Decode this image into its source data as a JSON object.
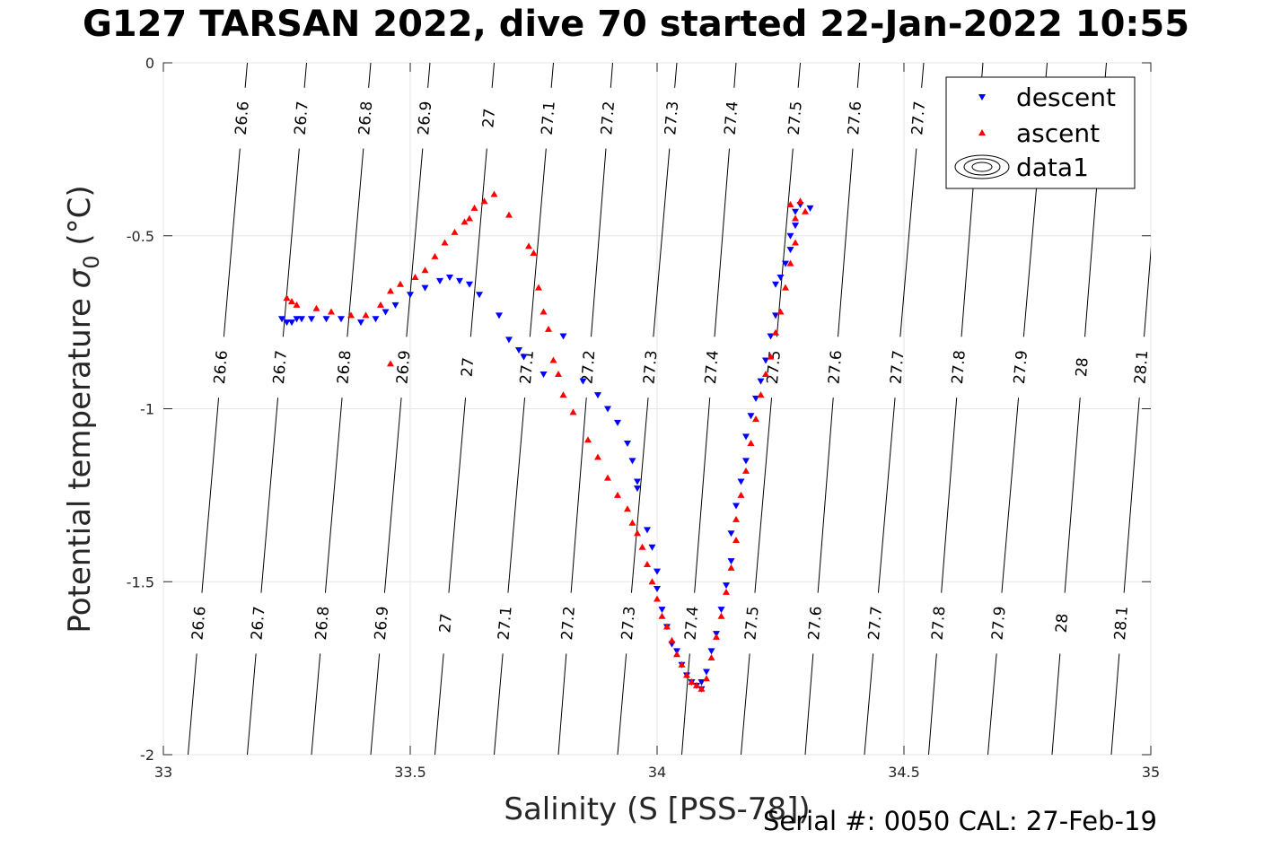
{
  "title": "G127 TARSAN 2022, dive 70 started 22-Jan-2022 10:55",
  "serial_text": "Serial #: 0050  CAL: 27-Feb-19",
  "chart_data": {
    "type": "scatter",
    "title": "G127 TARSAN 2022, dive 70 started 22-Jan-2022 10:55",
    "xlabel": "Salinity (S [PSS-78])",
    "ylabel": "Potential temperature σ₀ (°C)",
    "ylabel_parts": {
      "main": "Potential temperature ",
      "sym": "σ",
      "sub": "0",
      "unit": " (°C)"
    },
    "xlim": [
      33,
      35
    ],
    "ylim": [
      -2,
      0
    ],
    "x_ticks": [
      "33",
      "33.5",
      "34",
      "34.5",
      "35"
    ],
    "y_ticks": [
      "0",
      "-0.5",
      "-1",
      "-1.5",
      "-2"
    ],
    "grid": true,
    "legend_position": "top-right",
    "legend": [
      {
        "label": "descent",
        "marker": "triangle-down",
        "color": "#0000ff"
      },
      {
        "label": "ascent",
        "marker": "triangle-up",
        "color": "#ff0000"
      },
      {
        "label": "data1",
        "marker": "contour",
        "color": "#000000"
      }
    ],
    "contour_labels": [
      "26.6",
      "26.7",
      "26.8",
      "26.9",
      "27",
      "27.1",
      "27.2",
      "27.3",
      "27.4",
      "27.5",
      "27.6",
      "27.7",
      "27.8",
      "27.9",
      "28",
      "28.1"
    ],
    "contours": [
      {
        "level": 26.6,
        "s_bottom": 33.05,
        "s_top": 33.17
      },
      {
        "level": 26.7,
        "s_bottom": 33.17,
        "s_top": 33.29
      },
      {
        "level": 26.8,
        "s_bottom": 33.3,
        "s_top": 33.42
      },
      {
        "level": 26.9,
        "s_bottom": 33.42,
        "s_top": 33.54
      },
      {
        "level": 27.0,
        "s_bottom": 33.55,
        "s_top": 33.67
      },
      {
        "level": 27.1,
        "s_bottom": 33.67,
        "s_top": 33.79
      },
      {
        "level": 27.2,
        "s_bottom": 33.8,
        "s_top": 33.91
      },
      {
        "level": 27.3,
        "s_bottom": 33.92,
        "s_top": 34.04
      },
      {
        "level": 27.4,
        "s_bottom": 34.05,
        "s_top": 34.16
      },
      {
        "level": 27.5,
        "s_bottom": 34.17,
        "s_top": 34.29
      },
      {
        "level": 27.6,
        "s_bottom": 34.3,
        "s_top": 34.41
      },
      {
        "level": 27.7,
        "s_bottom": 34.42,
        "s_top": 34.54
      },
      {
        "level": 27.8,
        "s_bottom": 34.55,
        "s_top": 34.66
      },
      {
        "level": 27.9,
        "s_bottom": 34.67,
        "s_top": 34.79
      },
      {
        "level": 28.0,
        "s_bottom": 34.8,
        "s_top": 34.91
      },
      {
        "level": 28.1,
        "s_bottom": 34.92,
        "s_top": 35.03
      }
    ],
    "series": [
      {
        "name": "descent",
        "color": "#0000ff",
        "marker": "triangle-down",
        "points": [
          [
            33.24,
            -0.74
          ],
          [
            33.25,
            -0.75
          ],
          [
            33.26,
            -0.75
          ],
          [
            33.27,
            -0.74
          ],
          [
            33.28,
            -0.74
          ],
          [
            33.3,
            -0.74
          ],
          [
            33.33,
            -0.74
          ],
          [
            33.36,
            -0.74
          ],
          [
            33.4,
            -0.75
          ],
          [
            33.43,
            -0.74
          ],
          [
            33.45,
            -0.72
          ],
          [
            33.47,
            -0.7
          ],
          [
            33.5,
            -0.67
          ],
          [
            33.53,
            -0.65
          ],
          [
            33.56,
            -0.63
          ],
          [
            33.58,
            -0.62
          ],
          [
            33.6,
            -0.63
          ],
          [
            33.62,
            -0.64
          ],
          [
            33.64,
            -0.67
          ],
          [
            33.68,
            -0.73
          ],
          [
            33.7,
            -0.8
          ],
          [
            33.72,
            -0.83
          ],
          [
            33.73,
            -0.85
          ],
          [
            33.77,
            -0.9
          ],
          [
            33.81,
            -0.79
          ],
          [
            33.85,
            -0.92
          ],
          [
            33.88,
            -0.96
          ],
          [
            33.9,
            -1.0
          ],
          [
            33.92,
            -1.04
          ],
          [
            33.94,
            -1.1
          ],
          [
            33.95,
            -1.15
          ],
          [
            33.96,
            -1.21
          ],
          [
            33.96,
            -1.23
          ],
          [
            33.98,
            -1.35
          ],
          [
            33.99,
            -1.4
          ],
          [
            34.0,
            -1.47
          ],
          [
            34.0,
            -1.52
          ],
          [
            34.01,
            -1.58
          ],
          [
            34.02,
            -1.63
          ],
          [
            34.03,
            -1.68
          ],
          [
            34.04,
            -1.7
          ],
          [
            34.05,
            -1.74
          ],
          [
            34.06,
            -1.77
          ],
          [
            34.07,
            -1.79
          ],
          [
            34.08,
            -1.8
          ],
          [
            34.09,
            -1.81
          ],
          [
            34.09,
            -1.79
          ],
          [
            34.1,
            -1.76
          ],
          [
            34.11,
            -1.7
          ],
          [
            34.12,
            -1.65
          ],
          [
            34.13,
            -1.58
          ],
          [
            34.14,
            -1.51
          ],
          [
            34.15,
            -1.44
          ],
          [
            34.15,
            -1.36
          ],
          [
            34.16,
            -1.28
          ],
          [
            34.17,
            -1.21
          ],
          [
            34.18,
            -1.15
          ],
          [
            34.18,
            -1.08
          ],
          [
            34.19,
            -1.02
          ],
          [
            34.2,
            -0.97
          ],
          [
            34.21,
            -0.92
          ],
          [
            34.22,
            -0.86
          ],
          [
            34.23,
            -0.79
          ],
          [
            34.24,
            -0.73
          ],
          [
            34.24,
            -0.64
          ],
          [
            34.25,
            -0.62
          ],
          [
            34.26,
            -0.58
          ],
          [
            34.27,
            -0.54
          ],
          [
            34.27,
            -0.5
          ],
          [
            34.28,
            -0.47
          ],
          [
            34.28,
            -0.43
          ],
          [
            34.29,
            -0.41
          ],
          [
            34.31,
            -0.42
          ]
        ]
      },
      {
        "name": "ascent",
        "color": "#ff0000",
        "marker": "triangle-up",
        "points": [
          [
            33.25,
            -0.68
          ],
          [
            33.26,
            -0.69
          ],
          [
            33.27,
            -0.7
          ],
          [
            33.31,
            -0.71
          ],
          [
            33.34,
            -0.72
          ],
          [
            33.38,
            -0.73
          ],
          [
            33.41,
            -0.73
          ],
          [
            33.44,
            -0.7
          ],
          [
            33.46,
            -0.66
          ],
          [
            33.48,
            -0.64
          ],
          [
            33.51,
            -0.62
          ],
          [
            33.53,
            -0.6
          ],
          [
            33.55,
            -0.56
          ],
          [
            33.57,
            -0.52
          ],
          [
            33.59,
            -0.49
          ],
          [
            33.61,
            -0.46
          ],
          [
            33.62,
            -0.45
          ],
          [
            33.63,
            -0.42
          ],
          [
            33.65,
            -0.4
          ],
          [
            33.67,
            -0.38
          ],
          [
            33.7,
            -0.44
          ],
          [
            33.74,
            -0.53
          ],
          [
            33.75,
            -0.55
          ],
          [
            33.76,
            -0.65
          ],
          [
            33.77,
            -0.72
          ],
          [
            33.78,
            -0.77
          ],
          [
            33.79,
            -0.86
          ],
          [
            33.8,
            -0.9
          ],
          [
            33.81,
            -0.96
          ],
          [
            33.83,
            -1.01
          ],
          [
            33.86,
            -1.09
          ],
          [
            33.88,
            -1.14
          ],
          [
            33.9,
            -1.2
          ],
          [
            33.92,
            -1.25
          ],
          [
            33.94,
            -1.29
          ],
          [
            33.95,
            -1.33
          ],
          [
            33.96,
            -1.36
          ],
          [
            33.97,
            -1.4
          ],
          [
            33.98,
            -1.45
          ],
          [
            33.99,
            -1.5
          ],
          [
            34.0,
            -1.55
          ],
          [
            34.01,
            -1.6
          ],
          [
            34.02,
            -1.63
          ],
          [
            34.03,
            -1.67
          ],
          [
            34.04,
            -1.71
          ],
          [
            34.05,
            -1.74
          ],
          [
            34.06,
            -1.77
          ],
          [
            34.07,
            -1.79
          ],
          [
            34.08,
            -1.8
          ],
          [
            34.09,
            -1.81
          ],
          [
            34.1,
            -1.78
          ],
          [
            34.11,
            -1.72
          ],
          [
            34.12,
            -1.66
          ],
          [
            34.13,
            -1.6
          ],
          [
            34.14,
            -1.53
          ],
          [
            34.15,
            -1.46
          ],
          [
            34.16,
            -1.38
          ],
          [
            34.16,
            -1.32
          ],
          [
            34.17,
            -1.25
          ],
          [
            34.18,
            -1.18
          ],
          [
            34.19,
            -1.1
          ],
          [
            34.2,
            -1.03
          ],
          [
            34.21,
            -0.96
          ],
          [
            34.22,
            -0.9
          ],
          [
            34.23,
            -0.85
          ],
          [
            34.24,
            -0.78
          ],
          [
            34.25,
            -0.72
          ],
          [
            34.26,
            -0.65
          ],
          [
            34.27,
            -0.58
          ],
          [
            34.28,
            -0.52
          ],
          [
            34.28,
            -0.45
          ],
          [
            34.27,
            -0.41
          ],
          [
            34.29,
            -0.4
          ],
          [
            34.3,
            -0.43
          ],
          [
            33.46,
            -0.87
          ]
        ]
      }
    ]
  }
}
